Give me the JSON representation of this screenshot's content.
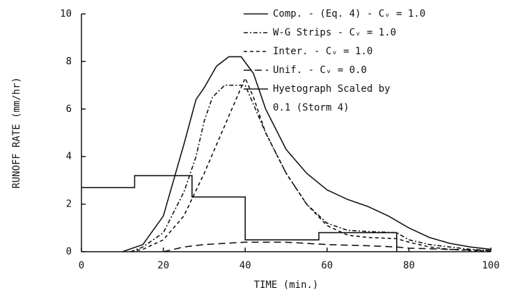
{
  "chart_data": {
    "type": "line",
    "xlabel": "TIME (min.)",
    "ylabel": "RUNOFF RATE (mm/hr)",
    "xlim": [
      0,
      100
    ],
    "xticks": [
      0,
      20,
      40,
      60,
      80,
      100
    ],
    "ylim": [
      0,
      10
    ],
    "yticks": [
      0,
      2,
      4,
      6,
      8,
      10
    ],
    "series": [
      {
        "name": "Comp. - (Eq. 4) - Cᵥ = 1.0",
        "color": "#111111",
        "dash": "none",
        "x": [
          10,
          15,
          20,
          25,
          28,
          30,
          33,
          36,
          39,
          42,
          45,
          50,
          55,
          60,
          65,
          70,
          75,
          80,
          85,
          90,
          95,
          100
        ],
        "values": [
          0,
          0.3,
          1.5,
          4.5,
          6.4,
          6.9,
          7.8,
          8.2,
          8.2,
          7.5,
          6,
          4.3,
          3.3,
          2.6,
          2.2,
          1.9,
          1.5,
          1.0,
          0.6,
          0.35,
          0.2,
          0.1
        ]
      },
      {
        "name": "W-G Strips - Cᵥ = 1.0",
        "color": "#111111",
        "dash": "6,3,2,3",
        "x": [
          12,
          15,
          20,
          25,
          28,
          30,
          32,
          35,
          40,
          42,
          45,
          50,
          55,
          60,
          65,
          70,
          77,
          80,
          85,
          90,
          95,
          100
        ],
        "values": [
          0,
          0.2,
          0.8,
          2.5,
          4,
          5.5,
          6.5,
          7.0,
          7.0,
          6.2,
          5,
          3.3,
          2.0,
          1.2,
          0.9,
          0.85,
          0.8,
          0.5,
          0.3,
          0.2,
          0.1,
          0.05
        ]
      },
      {
        "name": "Inter. - Cᵥ = 1.0",
        "color": "#111111",
        "dash": "5,4",
        "x": [
          12,
          15,
          20,
          25,
          30,
          35,
          40,
          42,
          45,
          50,
          55,
          60,
          65,
          70,
          77,
          80,
          85,
          90,
          95,
          100
        ],
        "values": [
          0,
          0.1,
          0.5,
          1.5,
          3.3,
          5.3,
          7.3,
          6.5,
          5,
          3.3,
          2.0,
          1.1,
          0.7,
          0.6,
          0.55,
          0.4,
          0.2,
          0.1,
          0.05,
          0.02
        ]
      },
      {
        "name": "Unif. - Cᵥ = 0.0",
        "color": "#111111",
        "dash": "10,6",
        "x": [
          20,
          25,
          30,
          40,
          50,
          60,
          70,
          77,
          80,
          90,
          100
        ],
        "values": [
          0,
          0.2,
          0.3,
          0.4,
          0.4,
          0.3,
          0.25,
          0.2,
          0.15,
          0.1,
          0.05
        ]
      },
      {
        "name": "Hyetograph Scaled by 0.1 (Storm 4)",
        "color": "#111111",
        "dash": "none",
        "x": [
          0,
          13,
          13,
          27,
          27,
          40,
          40,
          58,
          58,
          77,
          77
        ],
        "values": [
          2.7,
          2.7,
          3.2,
          3.2,
          2.3,
          2.3,
          0.5,
          0.5,
          0.8,
          0.8,
          0
        ]
      }
    ]
  }
}
